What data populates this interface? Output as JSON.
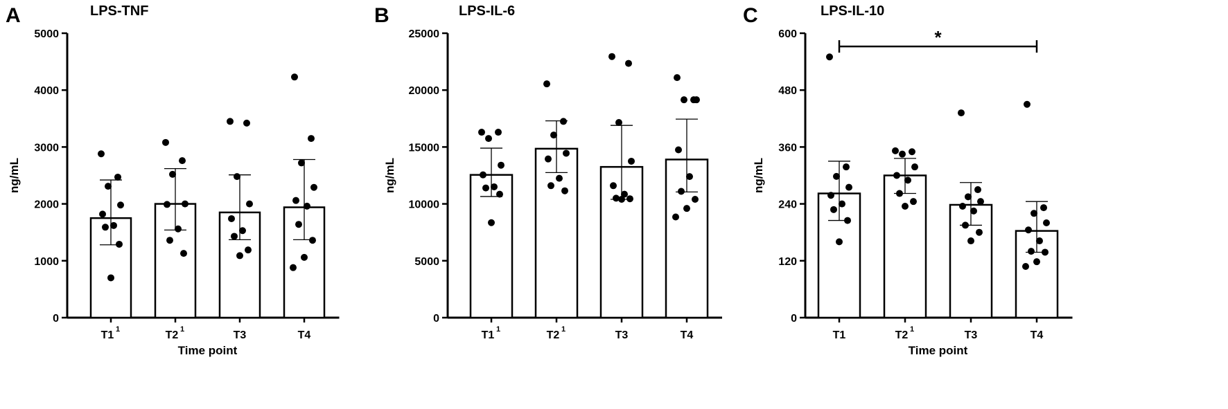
{
  "chart_data": [
    {
      "type": "bar",
      "panel": "A",
      "title": "LPS-TNF",
      "ylabel": "ng/mL",
      "xlabel": "Time point",
      "ylim": [
        0,
        5000
      ],
      "yticks": [
        0,
        1000,
        2000,
        3000,
        4000,
        5000
      ],
      "categories": [
        "T1",
        "T2",
        "T3",
        "T4"
      ],
      "category_superscripts": [
        "1",
        "1",
        "",
        ""
      ],
      "values": [
        1750,
        2000,
        1850,
        1940
      ],
      "error_low": [
        1280,
        1540,
        1370,
        1370
      ],
      "error_high": [
        2420,
        2620,
        2510,
        2780
      ],
      "points": [
        [
          2880,
          2470,
          2310,
          1980,
          1820,
          1620,
          1590,
          1290,
          700
        ],
        [
          3080,
          2760,
          2520,
          2000,
          1990,
          1560,
          1360,
          1130
        ],
        [
          3450,
          3420,
          2480,
          2000,
          1740,
          1530,
          1430,
          1190,
          1090
        ],
        [
          4230,
          3150,
          2720,
          2290,
          2060,
          1960,
          1640,
          1360,
          1060,
          880
        ]
      ],
      "significance": []
    },
    {
      "type": "bar",
      "panel": "B",
      "title": "LPS-IL-6",
      "ylabel": "ng/mL",
      "xlabel": "",
      "ylim": [
        0,
        25000
      ],
      "yticks": [
        0,
        5000,
        10000,
        15000,
        20000,
        25000
      ],
      "categories": [
        "T1",
        "T2",
        "T3",
        "T4"
      ],
      "category_superscripts": [
        "1",
        "1",
        "",
        ""
      ],
      "values": [
        12550,
        14850,
        13250,
        13900
      ],
      "error_low": [
        10650,
        12750,
        10400,
        11050
      ],
      "error_high": [
        14900,
        17300,
        16900,
        17450
      ],
      "points": [
        [
          16300,
          16300,
          15750,
          13400,
          12550,
          11500,
          11400,
          10850,
          8350
        ],
        [
          20550,
          17250,
          16050,
          14450,
          13950,
          12250,
          11600,
          11150
        ],
        [
          22950,
          22350,
          17150,
          13750,
          11600,
          10850,
          10500,
          10450,
          10400
        ],
        [
          21100,
          19150,
          19150,
          19150,
          14750,
          12400,
          11100,
          10400,
          9600,
          8850
        ]
      ],
      "significance": []
    },
    {
      "type": "bar",
      "panel": "C",
      "title": "LPS-IL-10",
      "ylabel": "ng/mL",
      "xlabel": "Time point",
      "ylim": [
        0,
        600
      ],
      "yticks": [
        0,
        120,
        240,
        360,
        480,
        600
      ],
      "categories": [
        "T1",
        "T2",
        "T3",
        "T4"
      ],
      "category_superscripts": [
        "",
        "1",
        "",
        ""
      ],
      "values": [
        262,
        300,
        238,
        183
      ],
      "error_low": [
        205,
        262,
        195,
        138
      ],
      "error_high": [
        330,
        336,
        285,
        245
      ],
      "points": [
        [
          550,
          318,
          298,
          275,
          258,
          240,
          228,
          205,
          160
        ],
        [
          352,
          350,
          345,
          318,
          300,
          290,
          262,
          245,
          235
        ],
        [
          432,
          270,
          255,
          245,
          235,
          225,
          195,
          180,
          162
        ],
        [
          450,
          232,
          220,
          200,
          185,
          162,
          140,
          138,
          118,
          108
        ]
      ],
      "significance": [
        {
          "from": 0,
          "to": 3,
          "label": "*",
          "y": 578
        }
      ]
    }
  ]
}
